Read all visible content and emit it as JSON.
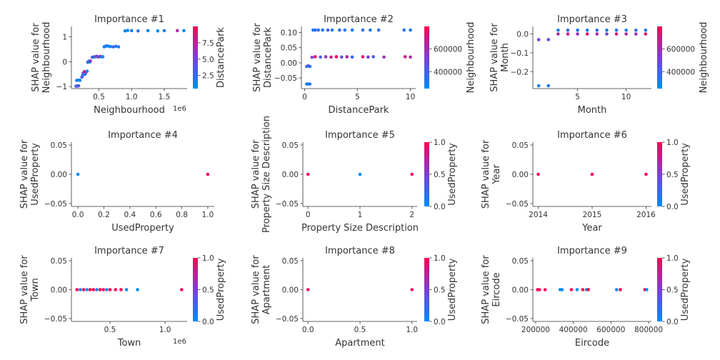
{
  "chart_data": [
    {
      "type": "scatter",
      "title": "Importance #1",
      "xlabel": "Neighbourhood",
      "ylabel": [
        "SHAP value for",
        "Neighbourhood"
      ],
      "xlim": [
        80000,
        1850000
      ],
      "ylim": [
        -1.08,
        1.42
      ],
      "xticks": [
        {
          "v": 500000,
          "l": "0.5"
        },
        {
          "v": 1000000,
          "l": "1.0"
        },
        {
          "v": 1500000,
          "l": "1.5"
        }
      ],
      "x_offset_text": "1e6",
      "yticks": [
        {
          "v": -1,
          "l": "−1"
        },
        {
          "v": 0,
          "l": "0"
        },
        {
          "v": 1,
          "l": "1"
        }
      ],
      "colorbar": {
        "label": "DistancePark",
        "range": [
          0.5,
          10
        ],
        "ticks": [
          {
            "v": 2.5,
            "l": "2.5"
          },
          {
            "v": 5.0,
            "l": "5.0"
          },
          {
            "v": 7.5,
            "l": "7.5"
          }
        ]
      },
      "points": [
        [
          150000,
          -0.98,
          0.2
        ],
        [
          170000,
          -0.98,
          0.4
        ],
        [
          190000,
          -0.97,
          0.3
        ],
        [
          160000,
          -0.75,
          1.0
        ],
        [
          190000,
          -0.74,
          1.5
        ],
        [
          210000,
          -0.75,
          0.6
        ],
        [
          240000,
          -0.62,
          4.0
        ],
        [
          250000,
          -0.56,
          2.0
        ],
        [
          260000,
          -0.45,
          3.0
        ],
        [
          280000,
          -0.4,
          8.0
        ],
        [
          300000,
          -0.43,
          9.5
        ],
        [
          320000,
          -0.38,
          0.8
        ],
        [
          290000,
          -0.5,
          2.5
        ],
        [
          330000,
          -0.02,
          1.0
        ],
        [
          340000,
          0.0,
          5.0
        ],
        [
          350000,
          0.02,
          1.2
        ],
        [
          360000,
          -0.01,
          2.0
        ],
        [
          370000,
          0.03,
          6.0
        ],
        [
          400000,
          0.18,
          1.5
        ],
        [
          430000,
          0.2,
          7.0
        ],
        [
          450000,
          0.2,
          1.0
        ],
        [
          470000,
          0.22,
          4.5
        ],
        [
          490000,
          0.19,
          2.5
        ],
        [
          520000,
          0.21,
          9.0
        ],
        [
          540000,
          0.2,
          1.1
        ],
        [
          560000,
          0.2,
          0.5
        ],
        [
          580000,
          0.6,
          0.8
        ],
        [
          600000,
          0.62,
          1.2
        ],
        [
          620000,
          0.64,
          2.0
        ],
        [
          650000,
          0.62,
          0.6
        ],
        [
          680000,
          0.61,
          1.0
        ],
        [
          720000,
          0.6,
          3.0
        ],
        [
          760000,
          0.62,
          1.5
        ],
        [
          800000,
          0.6,
          1.8
        ],
        [
          900000,
          1.24,
          1.0
        ],
        [
          940000,
          1.26,
          0.6
        ],
        [
          1000000,
          1.25,
          1.4
        ],
        [
          1100000,
          1.24,
          2.0
        ],
        [
          1250000,
          1.25,
          1.0
        ],
        [
          1400000,
          1.24,
          0.8
        ],
        [
          1500000,
          1.25,
          1.6
        ],
        [
          1700000,
          1.25,
          7.0
        ],
        [
          1800000,
          1.25,
          0.7
        ]
      ]
    },
    {
      "type": "scatter",
      "title": "Importance #2",
      "xlabel": "DistancePark",
      "ylabel": [
        "SHAP value for",
        "DistancePark"
      ],
      "xlim": [
        -0.3,
        10.5
      ],
      "ylim": [
        -0.085,
        0.12
      ],
      "xticks": [
        {
          "v": 0,
          "l": "0"
        },
        {
          "v": 5,
          "l": "5"
        },
        {
          "v": 10,
          "l": "10"
        }
      ],
      "yticks": [
        {
          "v": -0.05,
          "l": "−0.05"
        },
        {
          "v": 0.0,
          "l": "0.00"
        },
        {
          "v": 0.05,
          "l": "0.05"
        },
        {
          "v": 0.1,
          "l": "0.10"
        }
      ],
      "colorbar": {
        "label": "Neighbourhood",
        "range": [
          250000,
          800000
        ],
        "ticks": [
          {
            "v": 400000,
            "l": "400000"
          },
          {
            "v": 600000,
            "l": "600000"
          }
        ]
      },
      "points": [
        [
          0.2,
          -0.07,
          0.1
        ],
        [
          0.35,
          -0.07,
          0.15
        ],
        [
          0.5,
          -0.07,
          0.1
        ],
        [
          0.2,
          -0.012,
          0.2
        ],
        [
          0.35,
          -0.01,
          0.4
        ],
        [
          0.5,
          -0.012,
          0.15
        ],
        [
          0.7,
          0.018,
          0.5
        ],
        [
          1.0,
          0.02,
          0.9
        ],
        [
          1.5,
          0.019,
          0.3
        ],
        [
          2.0,
          0.02,
          0.6
        ],
        [
          2.5,
          0.019,
          0.8
        ],
        [
          3.0,
          0.02,
          1.0
        ],
        [
          3.5,
          0.019,
          0.4
        ],
        [
          4.0,
          0.02,
          0.7
        ],
        [
          4.5,
          0.019,
          0.2
        ],
        [
          5.5,
          0.02,
          0.9
        ],
        [
          6.0,
          0.019,
          0.5
        ],
        [
          6.5,
          0.02,
          0.3
        ],
        [
          7.5,
          0.019,
          0.6
        ],
        [
          9.5,
          0.02,
          0.8
        ],
        [
          10.0,
          0.019,
          0.7
        ],
        [
          0.8,
          0.108,
          0.1
        ],
        [
          1.0,
          0.108,
          0.2
        ],
        [
          1.3,
          0.108,
          0.15
        ],
        [
          1.7,
          0.108,
          0.1
        ],
        [
          2.2,
          0.108,
          0.25
        ],
        [
          2.6,
          0.108,
          0.1
        ],
        [
          3.3,
          0.108,
          0.2
        ],
        [
          3.8,
          0.108,
          0.15
        ],
        [
          4.5,
          0.108,
          0.1
        ],
        [
          5.5,
          0.108,
          0.2
        ],
        [
          6.2,
          0.108,
          0.1
        ],
        [
          7.0,
          0.108,
          0.2
        ],
        [
          9.4,
          0.108,
          0.15
        ],
        [
          10.0,
          0.108,
          0.1
        ]
      ]
    },
    {
      "type": "scatter",
      "title": "Importance #3",
      "xlabel": "Month",
      "ylabel": [
        "SHAP value for",
        "Month"
      ],
      "xlim": [
        0.4,
        12.6
      ],
      "ylim": [
        -0.29,
        0.04
      ],
      "xticks": [
        {
          "v": 5,
          "l": "5"
        },
        {
          "v": 10,
          "l": "10"
        }
      ],
      "yticks": [
        {
          "v": -0.2,
          "l": "−0.2"
        },
        {
          "v": -0.1,
          "l": "−0.1"
        },
        {
          "v": 0.0,
          "l": "0.0"
        }
      ],
      "colorbar": {
        "label": "Neighbourhood",
        "range": [
          250000,
          800000
        ],
        "ticks": [
          {
            "v": 400000,
            "l": "400000"
          },
          {
            "v": 600000,
            "l": "600000"
          }
        ]
      },
      "points": [
        [
          1,
          -0.275,
          0.1
        ],
        [
          2,
          -0.275,
          0.15
        ],
        [
          1,
          -0.03,
          0.5
        ],
        [
          2,
          -0.03,
          0.4
        ],
        [
          3,
          0.02,
          0.1
        ],
        [
          4,
          0.02,
          0.2
        ],
        [
          5,
          0.02,
          0.15
        ],
        [
          6,
          0.02,
          0.1
        ],
        [
          7,
          0.02,
          0.2
        ],
        [
          8,
          0.02,
          0.1
        ],
        [
          9,
          0.02,
          0.15
        ],
        [
          10,
          0.02,
          0.1
        ],
        [
          11,
          0.02,
          0.2
        ],
        [
          12,
          0.02,
          0.1
        ],
        [
          3,
          0.0,
          0.7
        ],
        [
          4,
          0.0,
          0.8
        ],
        [
          5,
          0.0,
          0.6
        ],
        [
          6,
          0.0,
          0.9
        ],
        [
          7,
          0.0,
          0.7
        ],
        [
          8,
          0.0,
          0.5
        ],
        [
          9,
          0.0,
          0.8
        ],
        [
          10,
          0.0,
          0.7
        ],
        [
          11,
          0.0,
          0.6
        ],
        [
          12,
          0.0,
          0.9
        ]
      ]
    },
    {
      "type": "scatter",
      "title": "Importance #4",
      "xlabel": "UsedProperty",
      "ylabel": [
        "SHAP value for",
        "UsedProperty"
      ],
      "xlim": [
        -0.05,
        1.05
      ],
      "ylim": [
        -0.055,
        0.055
      ],
      "xticks": [
        {
          "v": 0,
          "l": "0.0"
        },
        {
          "v": 0.2,
          "l": "0.2"
        },
        {
          "v": 0.4,
          "l": "0.4"
        },
        {
          "v": 0.6,
          "l": "0.6"
        },
        {
          "v": 0.8,
          "l": "0.8"
        },
        {
          "v": 1.0,
          "l": "1.0"
        }
      ],
      "yticks": [
        {
          "v": -0.05,
          "l": "−0.05"
        },
        {
          "v": 0.0,
          "l": "0.00"
        },
        {
          "v": 0.05,
          "l": "0.05"
        }
      ],
      "colorbar": null,
      "points": [
        [
          0,
          0,
          0
        ],
        [
          1,
          0,
          1
        ]
      ]
    },
    {
      "type": "scatter",
      "title": "Importance #5",
      "xlabel": "Property Size Description",
      "ylabel": [
        "SHAP value for",
        "Property Size Description"
      ],
      "xlim": [
        -0.1,
        2.1
      ],
      "ylim": [
        -0.055,
        0.055
      ],
      "xticks": [
        {
          "v": 0,
          "l": "0"
        },
        {
          "v": 1,
          "l": "1"
        },
        {
          "v": 2,
          "l": "2"
        }
      ],
      "yticks": [
        {
          "v": -0.05,
          "l": "−0.05"
        },
        {
          "v": 0.0,
          "l": "0.00"
        },
        {
          "v": 0.05,
          "l": "0.05"
        }
      ],
      "colorbar": {
        "label": "UsedProperty",
        "range": [
          0,
          1
        ],
        "ticks": [
          {
            "v": 0.0,
            "l": "0.0"
          },
          {
            "v": 0.5,
            "l": "0.5"
          },
          {
            "v": 1.0,
            "l": "1.0"
          }
        ]
      },
      "points": [
        [
          0,
          0,
          1
        ],
        [
          1,
          0,
          0
        ],
        [
          2,
          0,
          1
        ]
      ]
    },
    {
      "type": "scatter",
      "title": "Importance #6",
      "xlabel": "Year",
      "ylabel": [
        "SHAP value for",
        "Year"
      ],
      "xlim": [
        2013.9,
        2016.1
      ],
      "ylim": [
        -0.055,
        0.055
      ],
      "xticks": [
        {
          "v": 2014,
          "l": "2014"
        },
        {
          "v": 2015,
          "l": "2015"
        },
        {
          "v": 2016,
          "l": "2016"
        }
      ],
      "yticks": [
        {
          "v": -0.05,
          "l": "−0.05"
        },
        {
          "v": 0.0,
          "l": "0.00"
        },
        {
          "v": 0.05,
          "l": "0.05"
        }
      ],
      "colorbar": {
        "label": "UsedProperty",
        "range": [
          0,
          1
        ],
        "ticks": [
          {
            "v": 0.0,
            "l": "0.0"
          },
          {
            "v": 0.5,
            "l": "0.5"
          },
          {
            "v": 1.0,
            "l": "1.0"
          }
        ]
      },
      "points": [
        [
          2014,
          0,
          1
        ],
        [
          2015,
          0,
          1
        ],
        [
          2016,
          0,
          1
        ]
      ]
    },
    {
      "type": "scatter",
      "title": "Importance #7",
      "xlabel": "Town",
      "ylabel": [
        "SHAP value for",
        "Town"
      ],
      "xlim": [
        150000,
        1200000
      ],
      "ylim": [
        -0.055,
        0.055
      ],
      "xticks": [
        {
          "v": 500000,
          "l": "0.5"
        },
        {
          "v": 1000000,
          "l": "1.0"
        }
      ],
      "x_offset_text": "1e6",
      "yticks": [
        {
          "v": -0.05,
          "l": "−0.05"
        },
        {
          "v": 0.0,
          "l": "0.00"
        },
        {
          "v": 0.05,
          "l": "0.05"
        }
      ],
      "colorbar": {
        "label": "UsedProperty",
        "range": [
          0,
          1
        ],
        "ticks": [
          {
            "v": 0.0,
            "l": "0.0"
          },
          {
            "v": 0.5,
            "l": "0.5"
          },
          {
            "v": 1.0,
            "l": "1.0"
          }
        ]
      },
      "points": [
        [
          200000,
          0,
          1
        ],
        [
          230000,
          0,
          0
        ],
        [
          260000,
          0,
          1
        ],
        [
          290000,
          0,
          0
        ],
        [
          320000,
          0,
          1
        ],
        [
          350000,
          0,
          1
        ],
        [
          380000,
          0,
          0
        ],
        [
          410000,
          0,
          1
        ],
        [
          440000,
          0,
          1
        ],
        [
          470000,
          0,
          0
        ],
        [
          500000,
          0,
          1
        ],
        [
          550000,
          0,
          1
        ],
        [
          600000,
          0,
          1
        ],
        [
          650000,
          0,
          0
        ],
        [
          750000,
          0,
          0
        ],
        [
          1150000,
          0,
          1
        ]
      ]
    },
    {
      "type": "scatter",
      "title": "Importance #8",
      "xlabel": "Apartment",
      "ylabel": [
        "SHAP value for",
        "Apartment"
      ],
      "xlim": [
        -0.05,
        1.05
      ],
      "ylim": [
        -0.055,
        0.055
      ],
      "xticks": [
        {
          "v": 0,
          "l": "0.0"
        },
        {
          "v": 0.5,
          "l": "0.5"
        },
        {
          "v": 1.0,
          "l": "1.0"
        }
      ],
      "yticks": [
        {
          "v": -0.05,
          "l": "−0.05"
        },
        {
          "v": 0.0,
          "l": "0.00"
        },
        {
          "v": 0.05,
          "l": "0.05"
        }
      ],
      "colorbar": {
        "label": "UsedProperty",
        "range": [
          0,
          1
        ],
        "ticks": [
          {
            "v": 0.0,
            "l": "0.0"
          },
          {
            "v": 0.5,
            "l": "0.5"
          },
          {
            "v": 1.0,
            "l": "1.0"
          }
        ]
      },
      "points": [
        [
          0,
          0,
          1
        ],
        [
          1,
          0,
          1
        ]
      ]
    },
    {
      "type": "scatter",
      "title": "Importance #9",
      "xlabel": "Eircode",
      "ylabel": [
        "SHAP value for",
        "Eircode"
      ],
      "xlim": [
        185000,
        815000
      ],
      "ylim": [
        -0.055,
        0.055
      ],
      "xticks": [
        {
          "v": 200000,
          "l": "200000"
        },
        {
          "v": 400000,
          "l": "400000"
        },
        {
          "v": 600000,
          "l": "600000"
        },
        {
          "v": 800000,
          "l": "800000"
        }
      ],
      "yticks": [
        {
          "v": -0.05,
          "l": "−0.05"
        },
        {
          "v": 0.0,
          "l": "0.00"
        },
        {
          "v": 0.05,
          "l": "0.05"
        }
      ],
      "colorbar": {
        "label": "UsedProperty",
        "range": [
          0,
          1
        ],
        "ticks": [
          {
            "v": 0.0,
            "l": "0.0"
          },
          {
            "v": 0.5,
            "l": "0.5"
          },
          {
            "v": 1.0,
            "l": "1.0"
          }
        ]
      },
      "points": [
        [
          210000,
          0,
          1
        ],
        [
          220000,
          0,
          1
        ],
        [
          250000,
          0,
          1
        ],
        [
          330000,
          0,
          0
        ],
        [
          340000,
          0,
          0
        ],
        [
          390000,
          0,
          1
        ],
        [
          420000,
          0,
          0
        ],
        [
          450000,
          0,
          1
        ],
        [
          470000,
          0,
          0
        ],
        [
          480000,
          0,
          1
        ],
        [
          630000,
          0,
          0
        ],
        [
          650000,
          0,
          1
        ],
        [
          780000,
          0,
          1
        ],
        [
          790000,
          0,
          0
        ]
      ]
    }
  ]
}
